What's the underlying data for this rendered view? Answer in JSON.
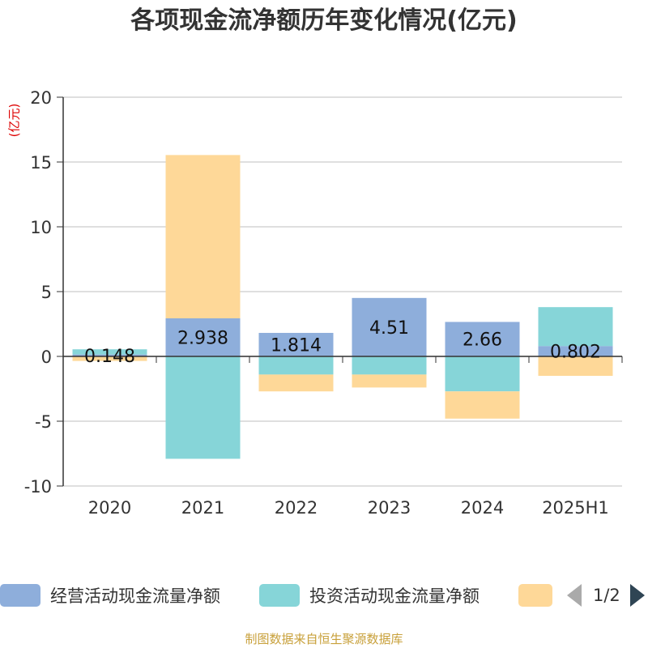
{
  "title": "各项现金流净额历年变化情况(亿元)",
  "unit_label": "(亿元)",
  "source": "制图数据来自恒生聚源数据库",
  "legend": {
    "items": [
      {
        "label": "经营活动现金流量净额",
        "color": "#8eaedb"
      },
      {
        "label": "投资活动现金流量净额",
        "color": "#86d5d8"
      },
      {
        "label": "",
        "color": "#fed898"
      }
    ],
    "page": "1/2"
  },
  "chart_data": {
    "type": "bar",
    "stacked": true,
    "categories": [
      "2020",
      "2021",
      "2022",
      "2023",
      "2024",
      "2025H1"
    ],
    "ylim": [
      -10,
      20
    ],
    "yticks": [
      -10,
      -5,
      0,
      5,
      10,
      15,
      20
    ],
    "grid": true,
    "legend_position": "bottom",
    "series": [
      {
        "name": "经营活动现金流量净额",
        "color": "#8eaedb",
        "values": [
          0.148,
          2.938,
          1.814,
          4.51,
          2.66,
          0.802
        ],
        "labels": [
          "0.148",
          "2.938",
          "1.814",
          "4.51",
          "2.66",
          "0.802"
        ]
      },
      {
        "name": "投资活动现金流量净额",
        "color": "#86d5d8",
        "values": [
          0.4,
          -7.9,
          -1.4,
          -1.4,
          -2.7,
          3.0
        ]
      },
      {
        "color": "#fed898",
        "values": [
          -0.35,
          12.6,
          -1.3,
          -1.0,
          -2.1,
          -1.5
        ]
      }
    ]
  }
}
